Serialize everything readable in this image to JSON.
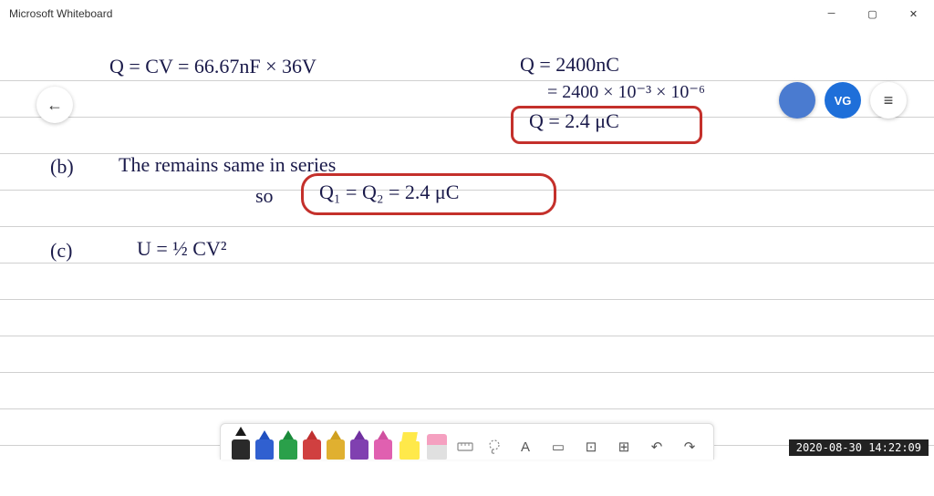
{
  "app": {
    "title": "Microsoft Whiteboard"
  },
  "avatars": {
    "primary": "",
    "secondary": "VG"
  },
  "timestamp": "2020-08-30 14:22:09",
  "lines": {
    "eq1": "Q = CV  = 66.67nF × 36V",
    "eq2": "Q = 2400nC",
    "eq3": "= 2400 × 10⁻³ × 10⁻⁶",
    "eq4": "Q = 2.4 μC",
    "b_label": "(b)",
    "b_text": "The remains same in series",
    "b_so": "so",
    "b_eq": "Q₁ = Q₂ = 2.4 μC",
    "c_label": "(c)",
    "c_eq": "U = ½ CV²"
  },
  "ruled_lines": [
    58,
    98,
    138,
    178,
    218,
    258,
    298,
    338,
    378,
    418,
    458
  ],
  "pens": [
    {
      "name": "pen-black",
      "tip": "#1a1a1a",
      "body": "#2a2a2a",
      "active": true
    },
    {
      "name": "pen-blue",
      "tip": "#2050c0",
      "body": "#3060d0"
    },
    {
      "name": "pen-green",
      "tip": "#1a8a3a",
      "body": "#2aa04a"
    },
    {
      "name": "pen-red",
      "tip": "#c03030",
      "body": "#d04040"
    },
    {
      "name": "pen-yellow",
      "tip": "#d0a020",
      "body": "#e0b030"
    },
    {
      "name": "pen-purple",
      "tip": "#7030a0",
      "body": "#8040b0"
    },
    {
      "name": "pen-pink",
      "tip": "#d050a0",
      "body": "#e060b0"
    }
  ],
  "tools": {
    "text": "A",
    "note": "▭",
    "image": "⊡",
    "add": "⊞",
    "undo": "↶",
    "redo": "↷"
  }
}
